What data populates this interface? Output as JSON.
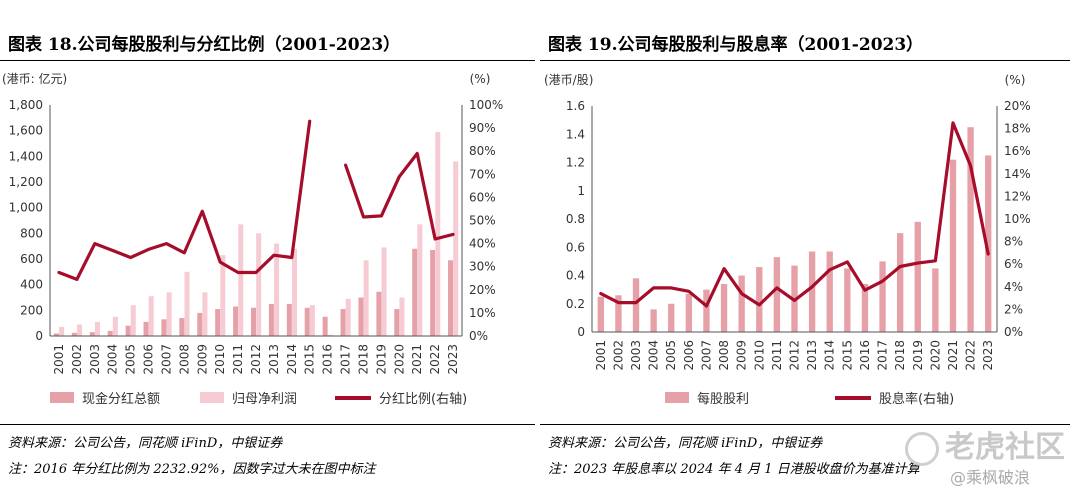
{
  "left_panel": {
    "title": "图表 18.公司每股股利与分红比例（2001-2023）",
    "source": "资料来源：公司公告，同花顺 iFinD，中银证券",
    "note": "注：2016 年分红比例为 2232.92%，因数字过大未在图中标注"
  },
  "right_panel": {
    "title": "图表 19.公司每股股利与股息率（2001-2023）",
    "source": "资料来源：公司公告，同花顺 iFinD，中银证券",
    "note": "注：2023 年股息率以 2024 年 4 月 1 日港股收盘价为基准计算"
  },
  "watermark": {
    "brand": "老虎社区",
    "user": "@乘枫破浪"
  },
  "colors": {
    "dark_bar": "#E6A1A8",
    "light_bar": "#F7CBD3",
    "line": "#A50D2B",
    "axis": "#555555"
  },
  "chart_data": [
    {
      "type": "bar",
      "title": "图表 18.公司每股股利与分红比例（2001-2023）",
      "left_unit": "(港币: 亿元)",
      "right_unit": "(%)",
      "categories": [
        "2001",
        "2002",
        "2003",
        "2004",
        "2005",
        "2006",
        "2007",
        "2008",
        "2009",
        "2010",
        "2011",
        "2012",
        "2013",
        "2014",
        "2015",
        "2016",
        "2017",
        "2018",
        "2019",
        "2020",
        "2021",
        "2022",
        "2023"
      ],
      "left_ticks": [
        "0",
        "200",
        "400",
        "600",
        "800",
        "1,000",
        "1,200",
        "1,400",
        "1,600",
        "1,800"
      ],
      "right_ticks": [
        "0%",
        "10%",
        "20%",
        "30%",
        "40%",
        "50%",
        "60%",
        "70%",
        "80%",
        "90%",
        "100%"
      ],
      "ylim_left": [
        0,
        1800
      ],
      "ylim_right": [
        0,
        100
      ],
      "legend_position": "bottom",
      "series": [
        {
          "name": "现金分红总额",
          "kind": "bar",
          "axis": "left",
          "color": "#E6A1A8",
          "values": [
            20,
            25,
            30,
            40,
            80,
            110,
            130,
            140,
            180,
            210,
            230,
            220,
            250,
            250,
            220,
            150,
            210,
            300,
            345,
            210,
            680,
            670,
            590
          ]
        },
        {
          "name": "归母净利润",
          "kind": "bar",
          "axis": "left",
          "color": "#F7CBD3",
          "values": [
            70,
            90,
            110,
            150,
            240,
            310,
            340,
            500,
            340,
            630,
            870,
            800,
            720,
            680,
            240,
            10,
            290,
            590,
            690,
            300,
            870,
            1590,
            1360
          ]
        },
        {
          "name": "分红比例(右轴)",
          "kind": "line",
          "axis": "right",
          "color": "#A50D2B",
          "values": [
            27.5,
            24.5,
            40,
            37,
            34,
            37.5,
            40,
            36,
            54,
            32,
            27.5,
            27.5,
            35,
            34,
            93,
            null,
            74,
            51.5,
            52,
            69,
            79,
            42,
            44
          ]
        }
      ]
    },
    {
      "type": "bar",
      "title": "图表 19.公司每股股利与股息率（2001-2023）",
      "left_unit": "(港币/股)",
      "right_unit": "(%)",
      "categories": [
        "2001",
        "2002",
        "2003",
        "2004",
        "2005",
        "2006",
        "2007",
        "2008",
        "2009",
        "2010",
        "2011",
        "2012",
        "2013",
        "2014",
        "2015",
        "2016",
        "2017",
        "2018",
        "2019",
        "2020",
        "2021",
        "2022",
        "2023"
      ],
      "left_ticks": [
        "0",
        "0.2",
        "0.4",
        "0.6",
        "0.8",
        "1",
        "1.2",
        "1.4",
        "1.6"
      ],
      "right_ticks": [
        "0%",
        "2%",
        "4%",
        "6%",
        "8%",
        "10%",
        "12%",
        "14%",
        "16%",
        "18%",
        "20%"
      ],
      "ylim_left": [
        0,
        1.6
      ],
      "ylim_right": [
        0,
        20
      ],
      "legend_position": "bottom",
      "series": [
        {
          "name": "每股股利",
          "kind": "bar",
          "axis": "left",
          "color": "#E6A1A8",
          "values": [
            0.25,
            0.26,
            0.38,
            0.16,
            0.2,
            0.27,
            0.3,
            0.34,
            0.4,
            0.46,
            0.53,
            0.47,
            0.57,
            0.57,
            0.45,
            0.34,
            0.5,
            0.7,
            0.78,
            0.45,
            1.22,
            1.45,
            1.25
          ]
        },
        {
          "name": "股息率(右轴)",
          "kind": "line",
          "axis": "right",
          "color": "#A50D2B",
          "values": [
            3.4,
            2.6,
            2.6,
            3.9,
            3.9,
            3.6,
            2.3,
            5.6,
            3.4,
            2.4,
            3.9,
            2.8,
            4,
            5.5,
            6.2,
            3.7,
            4.5,
            5.8,
            6.1,
            6.3,
            18.5,
            14.7,
            6.9
          ]
        }
      ]
    }
  ]
}
